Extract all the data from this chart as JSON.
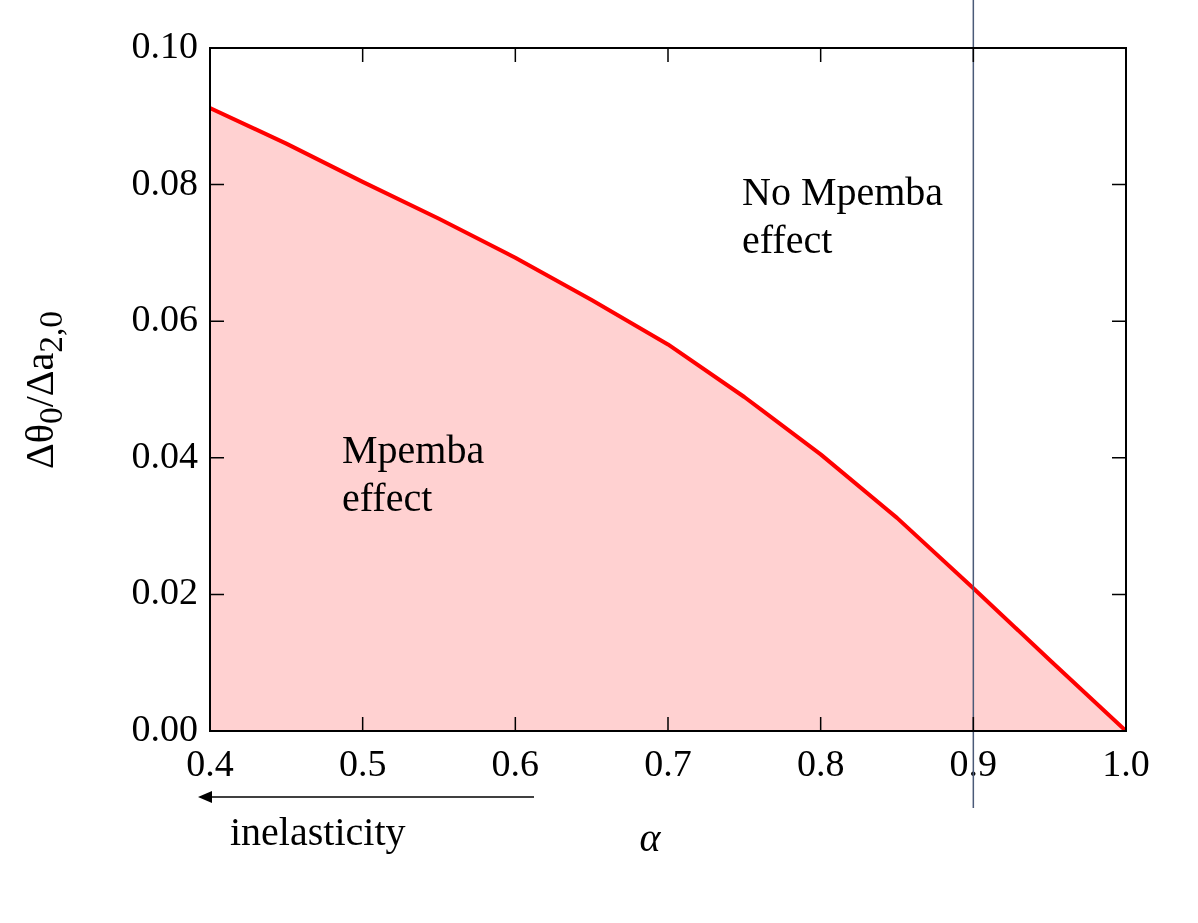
{
  "chart_data": {
    "type": "area",
    "xlabel": "α",
    "ylabel": "Δθ$_{0}$/Δa$_{2,0}$",
    "x": [
      0.4,
      0.45,
      0.5,
      0.55,
      0.6,
      0.65,
      0.7,
      0.75,
      0.8,
      0.85,
      0.9,
      0.95,
      1.0
    ],
    "series": [
      {
        "color": "#ff0000",
        "values": [
          0.0912,
          0.086,
          0.0804,
          0.075,
          0.0693,
          0.0631,
          0.0566,
          0.0489,
          0.0405,
          0.0312,
          0.0209,
          0.0104,
          0.0
        ]
      }
    ],
    "xlim": [
      0.4,
      1.0
    ],
    "xticks": [
      0.4,
      0.5,
      0.6,
      0.7,
      0.8,
      0.9,
      {
        "value": 1.0,
        "label": "1.0"
      }
    ],
    "ylim": [
      0,
      0.1
    ],
    "yticks": [
      {
        "value": 0,
        "label": "0.00"
      },
      {
        "value": 0.02,
        "label": "0.02"
      },
      {
        "value": 0.04,
        "label": "0.04"
      },
      {
        "value": 0.06,
        "label": "0.06"
      },
      {
        "value": 0.08,
        "label": "0.08"
      },
      {
        "value": 0.1,
        "label": "0.10"
      }
    ],
    "ref_lines": [
      {
        "axis": "x",
        "value": 0.9,
        "color": "#4a5a78"
      }
    ],
    "annotations": [
      "No Mpemba effect",
      "Mpemba effect",
      "inelasticity"
    ],
    "grid": false,
    "legend": false
  }
}
